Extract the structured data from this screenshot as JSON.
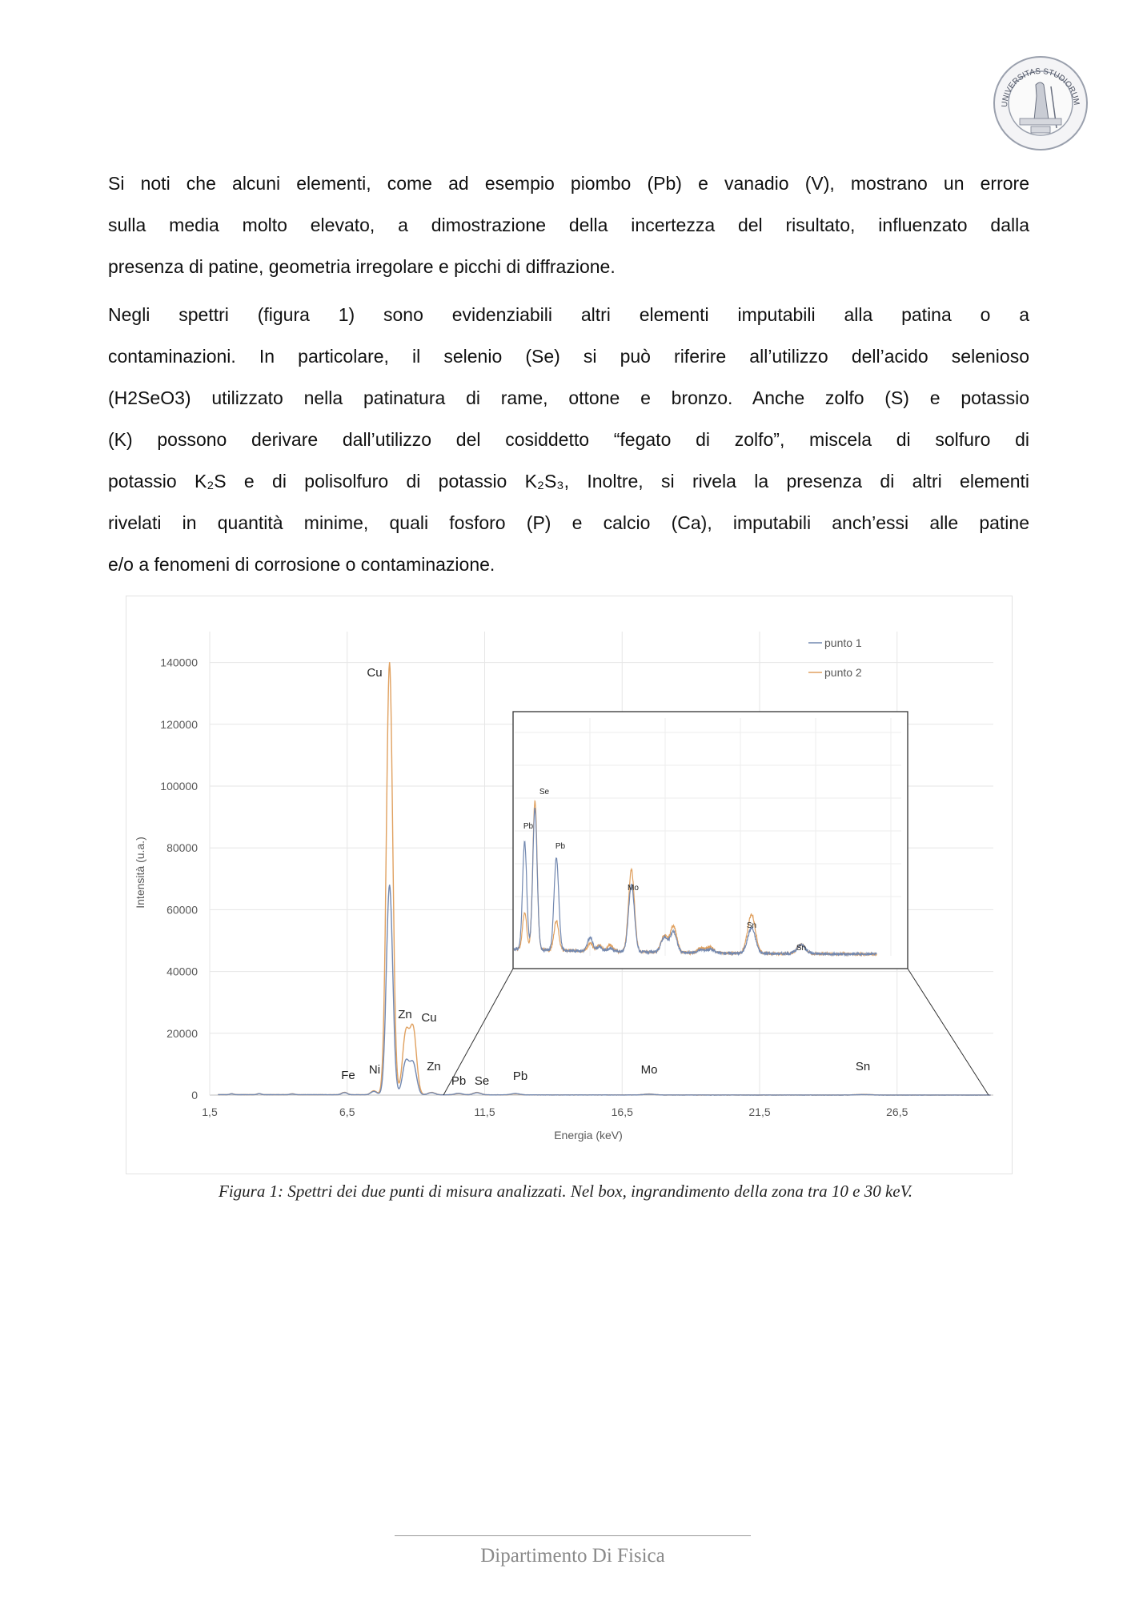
{
  "header": {
    "seal_text": "UNIVERSITAS STUDIORUM MEDIOLANENSIS"
  },
  "body": {
    "paragraph1": [
      "Si noti che alcuni elementi, come ad esempio piombo (Pb) e vanadio (V), mostrano un errore",
      "sulla media molto elevato, a dimostrazione della incertezza del risultato, influenzato dalla",
      "presenza di patine, geometria irregolare e picchi di diffrazione."
    ],
    "paragraph2": [
      "Negli spettri (figura 1) sono evidenziabili altri elementi imputabili alla patina o a",
      "contaminazioni. In particolare, il selenio (Se) si può riferire all’utilizzo dell’acido selenioso",
      "(H2SeO3) utilizzato nella patinatura di rame, ottone e bronzo. Anche zolfo (S) e potassio",
      "(K) possono derivare dall’utilizzo del cosiddetto “fegato di zolfo”, miscela di solfuro di",
      "potassio K₂S e di polisolfuro di potassio K₂S₃, Inoltre, si rivela la presenza di altri elementi",
      "rivelati in quantità minime, quali fosforo (P) e calcio (Ca), imputabili anch’essi alle patine",
      "e/o a fenomeni di corrosione o contaminazione."
    ]
  },
  "figure": {
    "caption": "Figura 1: Spettri dei due punti di misura analizzati. Nel box, ingrandimento della zona tra 10 e 30 keV."
  },
  "chart_data": {
    "type": "line",
    "xlabel": "Energia (keV)",
    "ylabel": "Intensità (u.a.)",
    "xlim": [
      1.5,
      30
    ],
    "ylim": [
      0,
      150000
    ],
    "x_ticks": [
      "1,5",
      "6,5",
      "11,5",
      "16,5",
      "21,5",
      "26,5"
    ],
    "y_ticks": [
      "0",
      "20000",
      "40000",
      "60000",
      "80000",
      "100000",
      "120000",
      "140000"
    ],
    "grid": true,
    "legend_position": "top-right",
    "colors": {
      "punto 1": "#7288b0",
      "punto 2": "#e0a160"
    },
    "series": [
      {
        "name": "punto 1",
        "peaks_keV_counts": [
          [
            2.3,
            250
          ],
          [
            3.3,
            300
          ],
          [
            4.5,
            250
          ],
          [
            6.4,
            700
          ],
          [
            7.47,
            1100
          ],
          [
            8.04,
            68000
          ],
          [
            8.63,
            10500
          ],
          [
            8.9,
            10000
          ],
          [
            9.57,
            700
          ],
          [
            10.55,
            500
          ],
          [
            11.22,
            700
          ],
          [
            12.61,
            450
          ],
          [
            17.48,
            250
          ],
          [
            25.27,
            150
          ]
        ]
      },
      {
        "name": "punto 2",
        "peaks_keV_counts": [
          [
            2.3,
            300
          ],
          [
            3.3,
            350
          ],
          [
            4.5,
            300
          ],
          [
            6.4,
            800
          ],
          [
            7.47,
            1300
          ],
          [
            8.04,
            140000
          ],
          [
            8.63,
            19500
          ],
          [
            8.9,
            21000
          ],
          [
            9.57,
            800
          ],
          [
            10.55,
            400
          ],
          [
            11.22,
            800
          ],
          [
            12.61,
            350
          ],
          [
            17.48,
            300
          ],
          [
            25.27,
            200
          ]
        ]
      }
    ],
    "peak_labels": [
      "Cu",
      "Zn",
      "Cu",
      "Fe",
      "Ni",
      "Zn",
      "Pb",
      "Se",
      "Pb",
      "Mo",
      "Sn"
    ],
    "inset": {
      "description_range_keV": [
        10,
        30
      ],
      "peak_labels": [
        "Se",
        "Pb",
        "Pb",
        "Mo",
        "Sn",
        "Sn"
      ],
      "series": [
        {
          "name": "punto 1",
          "peaks_keV_counts": [
            [
              10.55,
              720
            ],
            [
              11.22,
              950
            ],
            [
              12.61,
              620
            ],
            [
              14.8,
              90
            ],
            [
              15.4,
              30
            ],
            [
              16.1,
              20
            ],
            [
              17.48,
              450
            ],
            [
              19.6,
              100
            ],
            [
              20.2,
              140
            ],
            [
              22.0,
              20
            ],
            [
              22.6,
              25
            ],
            [
              25.27,
              170
            ],
            [
              28.5,
              60
            ]
          ]
        },
        {
          "name": "punto 2",
          "peaks_keV_counts": [
            [
              10.55,
              250
            ],
            [
              11.22,
              1000
            ],
            [
              12.61,
              200
            ],
            [
              14.8,
              50
            ],
            [
              15.4,
              40
            ],
            [
              16.1,
              45
            ],
            [
              17.48,
              550
            ],
            [
              19.6,
              110
            ],
            [
              20.2,
              180
            ],
            [
              22.0,
              30
            ],
            [
              22.6,
              40
            ],
            [
              25.27,
              260
            ],
            [
              28.5,
              60
            ]
          ]
        }
      ]
    }
  },
  "footer": {
    "department": "Dipartimento Di Fisica"
  }
}
